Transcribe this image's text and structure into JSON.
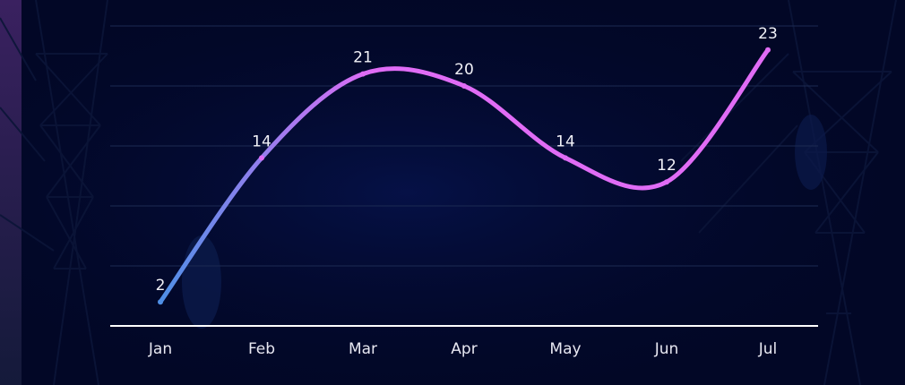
{
  "chart_data": {
    "type": "line",
    "smooth": true,
    "categories": [
      "Jan",
      "Feb",
      "Mar",
      "Apr",
      "May",
      "Jun",
      "Jul"
    ],
    "series": [
      {
        "values": [
          2,
          14,
          21,
          20,
          14,
          12,
          23
        ]
      }
    ],
    "data_labels": [
      "2",
      "14",
      "21",
      "20",
      "14",
      "12",
      "23"
    ],
    "ylim": [
      0,
      25
    ],
    "grid": true,
    "colors": {
      "line_start": "#4f8fe6",
      "line_end": "#e06cf5",
      "background": "#020726",
      "grid": "#1c2a52",
      "axis": "#ffffff"
    }
  }
}
